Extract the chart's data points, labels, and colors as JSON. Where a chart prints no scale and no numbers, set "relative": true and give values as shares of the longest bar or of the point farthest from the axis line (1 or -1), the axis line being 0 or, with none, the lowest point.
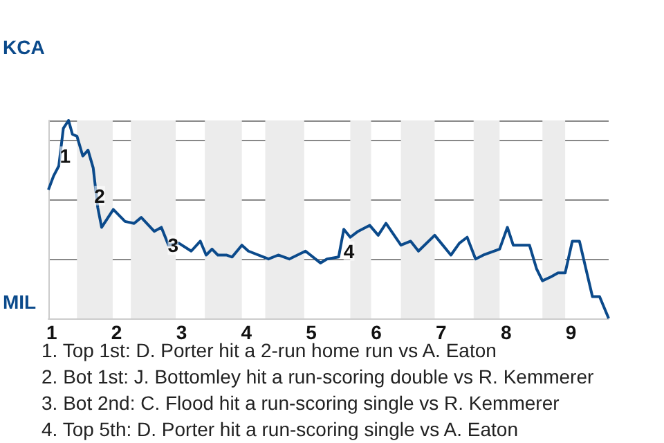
{
  "chart_data": {
    "type": "line",
    "relative": true,
    "x": [
      0.95,
      1.03,
      1.11,
      1.18,
      1.26,
      1.32,
      1.39,
      1.48,
      1.56,
      1.64,
      1.71,
      1.77,
      1.95,
      2.13,
      2.27,
      2.38,
      2.58,
      2.69,
      2.8,
      2.96,
      3.15,
      3.29,
      3.38,
      3.47,
      3.56,
      3.69,
      3.78,
      3.93,
      4.03,
      4.34,
      4.49,
      4.66,
      4.91,
      5.14,
      5.24,
      5.42,
      5.5,
      5.6,
      5.72,
      5.9,
      6.03,
      6.15,
      6.38,
      6.53,
      6.65,
      6.9,
      7.15,
      7.28,
      7.4,
      7.53,
      7.65,
      7.9,
      8.02,
      8.11,
      8.36,
      8.47,
      8.56,
      8.69,
      8.8,
      8.91,
      9.02,
      9.13,
      9.33,
      9.44,
      9.58
    ],
    "series": [
      {
        "color": "#0b4a8b",
        "values": [
          0.65,
          0.72,
          0.77,
          0.96,
          1,
          0.93,
          0.92,
          0.82,
          0.85,
          0.76,
          0.56,
          0.46,
          0.55,
          0.49,
          0.48,
          0.51,
          0.44,
          0.46,
          0.37,
          0.38,
          0.34,
          0.39,
          0.32,
          0.35,
          0.32,
          0.32,
          0.31,
          0.37,
          0.34,
          0.3,
          0.32,
          0.3,
          0.34,
          0.28,
          0.3,
          0.31,
          0.45,
          0.41,
          0.44,
          0.47,
          0.42,
          0.48,
          0.37,
          0.39,
          0.34,
          0.42,
          0.32,
          0.38,
          0.41,
          0.3,
          0.32,
          0.35,
          0.46,
          0.37,
          0.37,
          0.25,
          0.19,
          0.21,
          0.23,
          0.23,
          0.39,
          0.39,
          0.11,
          0.11,
          0
        ]
      }
    ],
    "xlim": [
      0.95,
      9.58
    ],
    "xticks": [
      1,
      2,
      3,
      4,
      5,
      6,
      7,
      8,
      9
    ],
    "grid": "y",
    "marker": "none",
    "bands": [
      {
        "axis": "x",
        "from": 1.39,
        "to": 1.94,
        "color": "#ececec"
      },
      {
        "axis": "x",
        "from": 2.22,
        "to": 2.91,
        "color": "#ececec"
      },
      {
        "axis": "x",
        "from": 3.36,
        "to": 3.93,
        "color": "#ececec"
      },
      {
        "axis": "x",
        "from": 4.29,
        "to": 4.89,
        "color": "#ececec"
      },
      {
        "axis": "x",
        "from": 5.6,
        "to": 5.92,
        "color": "#ececec"
      },
      {
        "axis": "x",
        "from": 6.38,
        "to": 6.9,
        "color": "#ececec"
      },
      {
        "axis": "x",
        "from": 7.5,
        "to": 7.9,
        "color": "#ececec"
      },
      {
        "axis": "x",
        "from": 8.56,
        "to": 8.91,
        "color": "#ececec"
      }
    ],
    "annotations": [
      {
        "text": "KCA"
      },
      {
        "text": "MIL"
      },
      {
        "text": "1",
        "x": 1.21,
        "y": 0.82
      },
      {
        "text": "2",
        "x": 1.74,
        "y": 0.62
      },
      {
        "text": "3",
        "x": 2.87,
        "y": 0.37
      },
      {
        "text": "4",
        "x": 5.58,
        "y": 0.34
      },
      "1. Top 1st: D. Porter hit a 2-run home run vs A. Eaton",
      "2. Bot 1st: J. Bottomley hit a run-scoring double vs R. Kemmerer",
      "3. Bot 2nd: C. Flood hit a run-scoring single vs R. Kemmerer",
      "4. Top 5th: D. Porter hit a run-scoring single vs A. Eaton"
    ]
  }
}
